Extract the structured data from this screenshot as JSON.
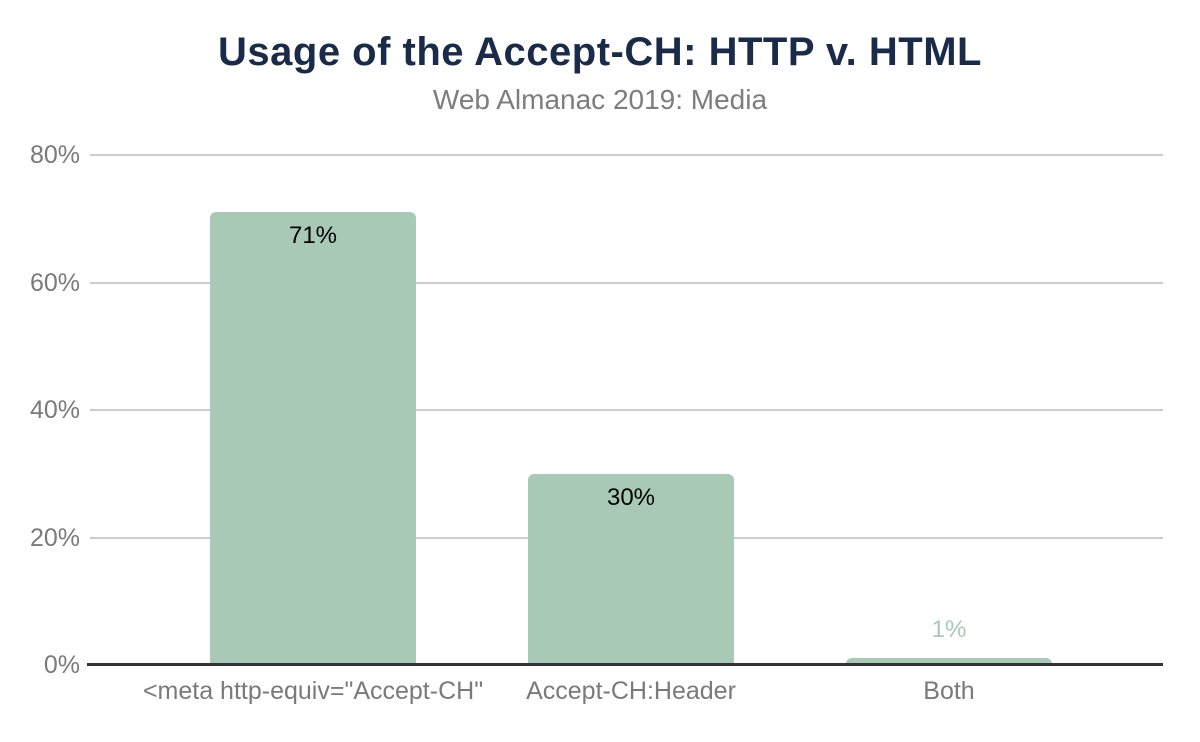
{
  "header": {
    "title": "Usage of the Accept-CH: HTTP v. HTML",
    "subtitle": "Web Almanac 2019: Media"
  },
  "colors": {
    "title": "#1a2b49",
    "subtitle": "#7d7d7d",
    "axis_label": "#7a7a7a",
    "gridline": "#cccccc",
    "baseline": "#333333",
    "bar": "#a9c9b7",
    "value_inside": "#000000",
    "value_outside": "#a9c9b7"
  },
  "chart_data": {
    "type": "bar",
    "title": "Usage of the Accept-CH: HTTP v. HTML",
    "subtitle": "Web Almanac 2019: Media",
    "categories": [
      "<meta http-equiv=\"Accept-CH\"",
      "Accept-CH:Header",
      "Both"
    ],
    "values": [
      71,
      30,
      1
    ],
    "value_labels": [
      "71%",
      "30%",
      "1%"
    ],
    "ylim": [
      0,
      80
    ],
    "yticks": [
      0,
      20,
      40,
      60,
      80
    ],
    "ytick_labels": [
      "0%",
      "20%",
      "40%",
      "60%",
      "80%"
    ],
    "xlabel": "",
    "ylabel": "",
    "grid": true,
    "legend": "none",
    "bar_color": "#a9c9b7"
  }
}
